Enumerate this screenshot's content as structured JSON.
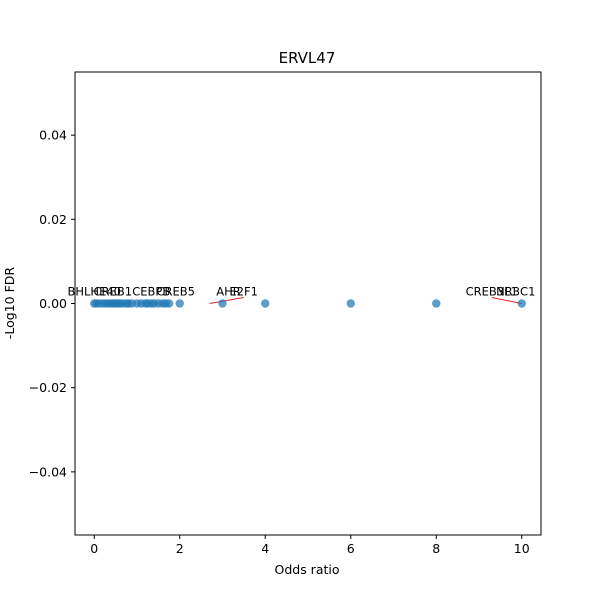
{
  "chart_data": {
    "type": "scatter",
    "title": "ERVL47",
    "xlabel": "Odds ratio",
    "ylabel": "-Log10 FDR",
    "xlim": [
      -0.45,
      10.45
    ],
    "ylim": [
      -0.055,
      0.055
    ],
    "xticks": [
      0,
      2,
      4,
      6,
      8,
      10
    ],
    "yticks": [
      -0.04,
      -0.02,
      0.0,
      0.02,
      0.04
    ],
    "xtick_labels": [
      "0",
      "2",
      "4",
      "6",
      "8",
      "10"
    ],
    "ytick_labels": [
      "−0.04",
      "−0.02",
      "0.00",
      "0.02",
      "0.04"
    ],
    "grid": false,
    "marker_color": "#1f77b4",
    "connector_color": "#d62728",
    "points": [
      {
        "x": 0.0,
        "y": 0
      },
      {
        "x": 0.05,
        "y": 0
      },
      {
        "x": 0.12,
        "y": 0
      },
      {
        "x": 0.2,
        "y": 0
      },
      {
        "x": 0.27,
        "y": 0
      },
      {
        "x": 0.33,
        "y": 0
      },
      {
        "x": 0.4,
        "y": 0
      },
      {
        "x": 0.45,
        "y": 0
      },
      {
        "x": 0.5,
        "y": 0
      },
      {
        "x": 0.55,
        "y": 0
      },
      {
        "x": 0.6,
        "y": 0
      },
      {
        "x": 0.67,
        "y": 0
      },
      {
        "x": 0.75,
        "y": 0
      },
      {
        "x": 0.8,
        "y": 0
      },
      {
        "x": 0.88,
        "y": 0
      },
      {
        "x": 1.0,
        "y": 0
      },
      {
        "x": 1.1,
        "y": 0
      },
      {
        "x": 1.2,
        "y": 0
      },
      {
        "x": 1.25,
        "y": 0
      },
      {
        "x": 1.33,
        "y": 0
      },
      {
        "x": 1.4,
        "y": 0
      },
      {
        "x": 1.5,
        "y": 0
      },
      {
        "x": 1.6,
        "y": 0
      },
      {
        "x": 1.67,
        "y": 0
      },
      {
        "x": 1.75,
        "y": 0
      },
      {
        "x": 2.0,
        "y": 0
      },
      {
        "x": 3.0,
        "y": 0
      },
      {
        "x": 4.0,
        "y": 0
      },
      {
        "x": 6.0,
        "y": 0
      },
      {
        "x": 8.0,
        "y": 0
      },
      {
        "x": 10.0,
        "y": 0
      }
    ],
    "annotations": [
      {
        "text": "BHLHE40",
        "x": 0.0,
        "y": 0
      },
      {
        "text": "CREB1",
        "x": 0.2,
        "y": 0
      },
      {
        "text": "CEBPB",
        "x": 1.1,
        "y": 0
      },
      {
        "text": "CREB5",
        "x": 2.0,
        "y": 0
      },
      {
        "text": "E2F1",
        "x": 2.7,
        "y": 0
      },
      {
        "text": "AHR",
        "x": 3.0,
        "y": 0
      },
      {
        "text": "CREB3L1",
        "x": 10.0,
        "y": 0
      },
      {
        "text": "NR3C1",
        "x": 10.0,
        "y": 0
      }
    ]
  }
}
